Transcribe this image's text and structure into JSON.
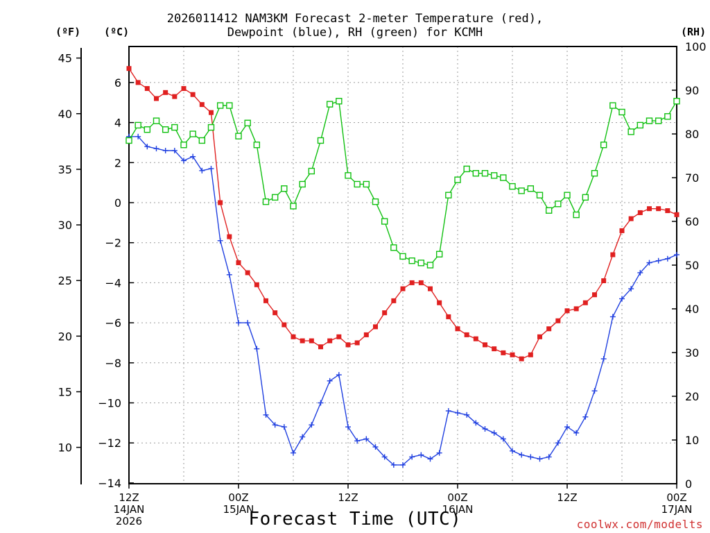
{
  "title_line1": "2026011412 NAM3KM Forecast 2-meter Temperature (red),",
  "title_line2": "Dewpoint (blue), RH (green) for KCMH",
  "unit_f": "(ºF)",
  "unit_c": "(ºC)",
  "unit_rh": "(RH)",
  "xlabel": "Forecast Time (UTC)",
  "credit": "coolwx.com/modelts",
  "colors": {
    "temperature": "#e02020",
    "dewpoint": "#1f3fe0",
    "rh": "#10c010",
    "grid": "#9a9a9a",
    "credit": "#d03030"
  },
  "chart_data": {
    "type": "line",
    "title": "2026011412 NAM3KM Forecast 2-meter Temperature (red), Dewpoint (blue), RH (green) for KCMH",
    "xlabel": "Forecast Time (UTC)",
    "x_hours": [
      0,
      1,
      2,
      3,
      4,
      5,
      6,
      7,
      8,
      9,
      10,
      11,
      12,
      13,
      14,
      15,
      16,
      17,
      18,
      19,
      20,
      21,
      22,
      23,
      24,
      25,
      26,
      27,
      28,
      29,
      30,
      31,
      32,
      33,
      34,
      35,
      36,
      37,
      38,
      39,
      40,
      41,
      42,
      43,
      44,
      45,
      46,
      47,
      48,
      49,
      50,
      51,
      52,
      53,
      54,
      55,
      56,
      57,
      58,
      59,
      60
    ],
    "xlim": [
      0,
      60
    ],
    "x_ticks": [
      {
        "hour": 0,
        "lines": [
          "12Z",
          "14JAN",
          "2026"
        ]
      },
      {
        "hour": 12,
        "lines": [
          "00Z",
          "15JAN"
        ]
      },
      {
        "hour": 24,
        "lines": [
          "12Z"
        ]
      },
      {
        "hour": 36,
        "lines": [
          "00Z",
          "16JAN"
        ]
      },
      {
        "hour": 48,
        "lines": [
          "12Z"
        ]
      },
      {
        "hour": 60,
        "lines": [
          "00Z",
          "17JAN"
        ]
      }
    ],
    "y_left_celsius": {
      "ylim": [
        -14,
        7
      ],
      "ticks": [
        "6",
        "4",
        "2",
        "0",
        "−2",
        "−4",
        "−6",
        "−8",
        "−10",
        "−12",
        "−14"
      ]
    },
    "y_left_fahrenheit": {
      "ticks": [
        "45",
        "40",
        "35",
        "30",
        "25",
        "20",
        "15",
        "10"
      ]
    },
    "y_right_rh": {
      "ylim": [
        0,
        100
      ],
      "ticks": [
        "100",
        "90",
        "80",
        "70",
        "60",
        "50",
        "40",
        "30",
        "20",
        "10",
        "0"
      ]
    },
    "series": [
      {
        "name": "Temperature (°C)",
        "axis": "celsius",
        "marker": "filled-square",
        "values": [
          6.7,
          6.0,
          5.7,
          5.2,
          5.5,
          5.3,
          5.7,
          5.4,
          4.9,
          4.5,
          0.0,
          -1.7,
          -3.0,
          -3.5,
          -4.1,
          -4.9,
          -5.5,
          -6.1,
          -6.7,
          -6.9,
          -6.9,
          -7.2,
          -6.9,
          -6.7,
          -7.1,
          -7.0,
          -6.6,
          -6.2,
          -5.5,
          -4.9,
          -4.3,
          -4.0,
          -4.0,
          -4.3,
          -5.0,
          -5.7,
          -6.3,
          -6.6,
          -6.8,
          -7.1,
          -7.3,
          -7.5,
          -7.6,
          -7.8,
          -7.6,
          -6.7,
          -6.3,
          -5.9,
          -5.4,
          -5.3,
          -5.0,
          -4.6,
          -3.9,
          -2.6,
          -1.4,
          -0.8,
          -0.5,
          -0.3,
          -0.3,
          -0.4,
          -0.6
        ]
      },
      {
        "name": "Dewpoint (°C)",
        "axis": "celsius",
        "marker": "plus",
        "values": [
          3.3,
          3.3,
          2.8,
          2.7,
          2.6,
          2.6,
          2.1,
          2.3,
          1.6,
          1.7,
          -1.9,
          -3.6,
          -6.0,
          -6.0,
          -7.3,
          -10.6,
          -11.1,
          -11.2,
          -12.5,
          -11.7,
          -11.1,
          -10.0,
          -8.9,
          -8.6,
          -11.2,
          -11.9,
          -11.8,
          -12.2,
          -12.7,
          -13.1,
          -13.1,
          -12.7,
          -12.6,
          -12.8,
          -12.5,
          -10.4,
          -10.5,
          -10.6,
          -11.0,
          -11.3,
          -11.5,
          -11.8,
          -12.4,
          -12.6,
          -12.7,
          -12.8,
          -12.7,
          -12.0,
          -11.2,
          -11.5,
          -10.7,
          -9.4,
          -7.8,
          -5.7,
          -4.8,
          -4.3,
          -3.5,
          -3.0,
          -2.9,
          -2.8,
          -2.6
        ]
      },
      {
        "name": "Relative Humidity (%)",
        "axis": "rh",
        "marker": "open-square",
        "values": [
          78.5,
          82.0,
          81.0,
          83.0,
          81.0,
          81.5,
          77.5,
          80.0,
          78.5,
          81.5,
          86.5,
          86.5,
          79.5,
          82.5,
          77.5,
          64.5,
          65.5,
          67.5,
          63.5,
          68.5,
          71.5,
          78.5,
          86.8,
          87.5,
          70.5,
          68.5,
          68.5,
          64.5,
          60.0,
          54.0,
          52.0,
          51.0,
          50.5,
          50.0,
          52.5,
          66.0,
          69.5,
          72.0,
          71.0,
          71.0,
          70.5,
          70.0,
          68.0,
          67.0,
          67.5,
          66.0,
          62.5,
          64.0,
          66.0,
          61.5,
          65.5,
          71.0,
          77.5,
          86.5,
          85.0,
          80.5,
          82.0,
          83.0,
          83.0,
          84.0,
          87.5
        ]
      }
    ]
  }
}
